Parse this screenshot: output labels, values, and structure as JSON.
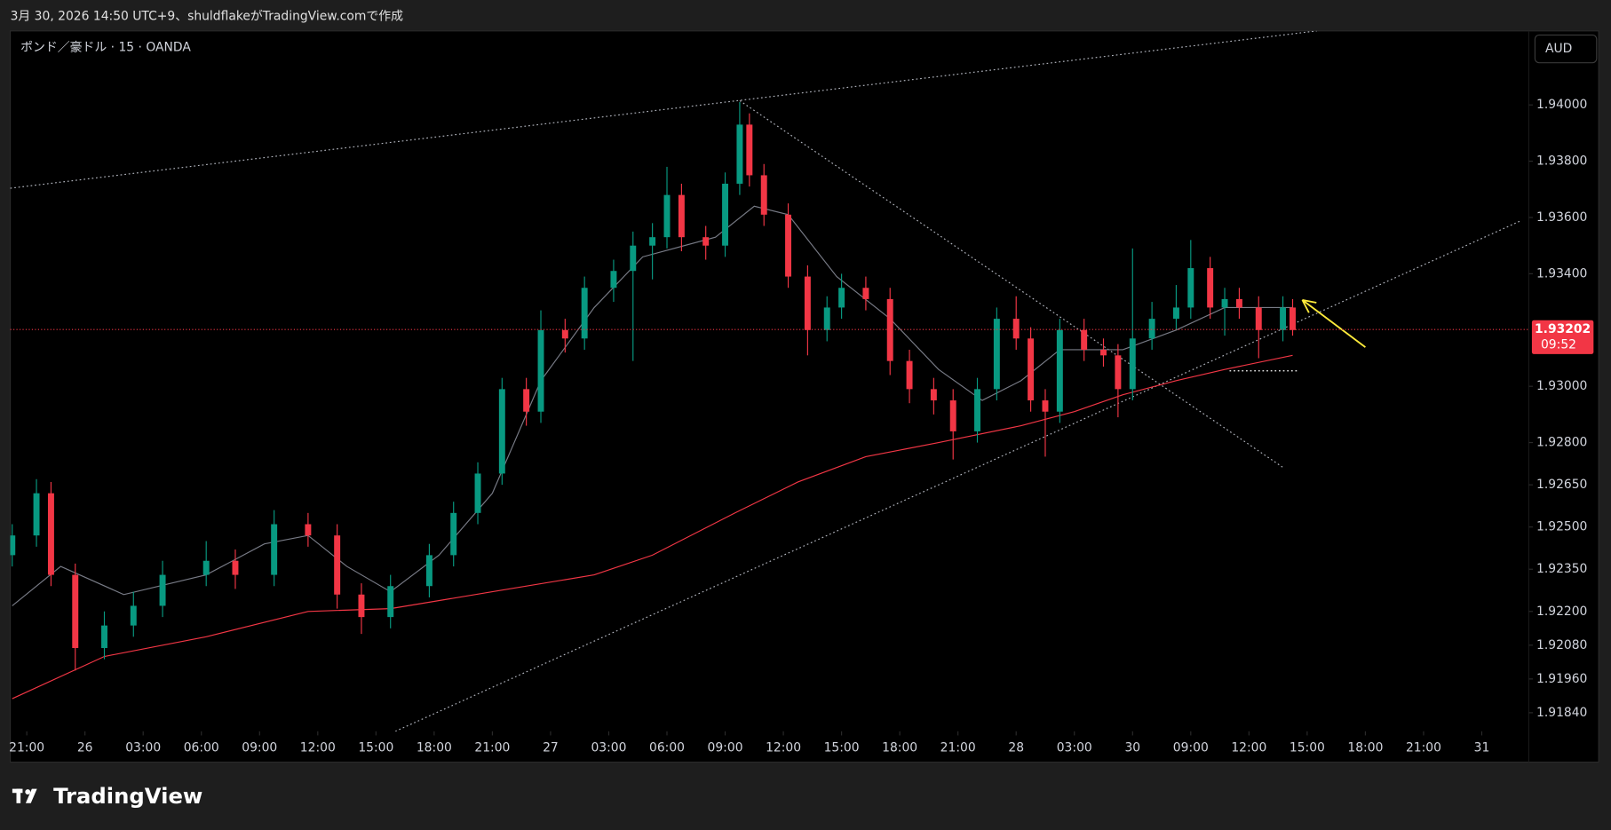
{
  "header": {
    "text": "3月 30, 2026 14:50 UTC+9、shuldflakeがTradingView.comで作成"
  },
  "footer": {
    "logo": "TradingView"
  },
  "chart_data": {
    "type": "candlestick",
    "title": "ポンド／豪ドル · 15 · OANDA",
    "currency": "AUD",
    "x": [
      -3,
      2,
      5,
      10,
      16,
      22,
      28,
      37,
      43,
      51,
      58,
      64,
      69,
      75,
      83,
      88,
      93,
      98,
      103,
      106,
      111,
      115,
      121,
      125,
      129,
      132,
      135,
      140,
      144,
      147,
      149,
      152,
      157,
      161,
      165,
      168,
      173,
      178,
      182,
      187,
      191,
      196,
      200,
      204,
      207,
      210,
      213,
      218,
      222,
      225,
      228,
      232,
      237,
      240,
      244,
      247,
      250,
      254,
      259,
      261
    ],
    "open": [
      1.924,
      1.9247,
      1.9262,
      1.9233,
      1.9207,
      1.9215,
      1.9222,
      1.9233,
      1.9238,
      1.9233,
      1.9251,
      1.9247,
      1.9226,
      1.9218,
      1.9229,
      1.924,
      1.9255,
      1.9269,
      1.9299,
      1.9291,
      1.932,
      1.9317,
      1.9335,
      1.9341,
      1.935,
      1.9353,
      1.9368,
      1.9353,
      1.935,
      1.9372,
      1.9393,
      1.9375,
      1.9361,
      1.9339,
      1.932,
      1.9328,
      1.9335,
      1.9331,
      1.9309,
      1.9299,
      1.9295,
      1.9284,
      1.9299,
      1.9324,
      1.9317,
      1.9295,
      1.9291,
      1.932,
      1.9313,
      1.9311,
      1.9299,
      1.9317,
      1.9324,
      1.9328,
      1.9342,
      1.9328,
      1.9331,
      1.9328,
      1.932,
      1.9328
    ],
    "high": [
      1.9251,
      1.9267,
      1.9266,
      1.9237,
      1.922,
      1.9227,
      1.9238,
      1.9245,
      1.9242,
      1.9256,
      1.9255,
      1.9251,
      1.923,
      1.9233,
      1.9244,
      1.9259,
      1.9273,
      1.9303,
      1.9303,
      1.9327,
      1.9324,
      1.9339,
      1.9345,
      1.9355,
      1.9358,
      1.9378,
      1.9372,
      1.9357,
      1.9376,
      1.9401,
      1.9397,
      1.9379,
      1.9365,
      1.9343,
      1.9332,
      1.934,
      1.9339,
      1.9335,
      1.9313,
      1.9303,
      1.9299,
      1.9303,
      1.9328,
      1.9332,
      1.9321,
      1.9299,
      1.9324,
      1.9324,
      1.9317,
      1.9315,
      1.9349,
      1.933,
      1.9336,
      1.9352,
      1.9346,
      1.9335,
      1.9335,
      1.9332,
      1.9332,
      1.9331
    ],
    "low": [
      1.9236,
      1.9243,
      1.9229,
      1.9199,
      1.9203,
      1.9211,
      1.9218,
      1.9229,
      1.9228,
      1.9229,
      1.9243,
      1.9221,
      1.9212,
      1.9214,
      1.9225,
      1.9236,
      1.9251,
      1.9265,
      1.9286,
      1.9287,
      1.9312,
      1.9313,
      1.933,
      1.9309,
      1.9338,
      1.9349,
      1.9348,
      1.9345,
      1.9346,
      1.9368,
      1.9371,
      1.9357,
      1.9335,
      1.9311,
      1.9316,
      1.9324,
      1.9327,
      1.9304,
      1.9294,
      1.929,
      1.9274,
      1.928,
      1.9295,
      1.9313,
      1.9291,
      1.9275,
      1.9287,
      1.9309,
      1.9307,
      1.9289,
      1.9295,
      1.9313,
      1.932,
      1.9324,
      1.9324,
      1.9318,
      1.9324,
      1.931,
      1.9316,
      1.9318
    ],
    "close": [
      1.9247,
      1.9262,
      1.9233,
      1.9207,
      1.9215,
      1.9222,
      1.9233,
      1.9238,
      1.9233,
      1.9251,
      1.9247,
      1.9226,
      1.9218,
      1.9229,
      1.924,
      1.9255,
      1.9269,
      1.9299,
      1.9291,
      1.932,
      1.9317,
      1.9335,
      1.9341,
      1.935,
      1.9353,
      1.9368,
      1.9353,
      1.935,
      1.9372,
      1.9393,
      1.9375,
      1.9361,
      1.9339,
      1.932,
      1.9328,
      1.9335,
      1.9331,
      1.9309,
      1.9299,
      1.9295,
      1.9284,
      1.9299,
      1.9324,
      1.9317,
      1.9295,
      1.9291,
      1.932,
      1.9313,
      1.9311,
      1.9299,
      1.9317,
      1.9324,
      1.9328,
      1.9342,
      1.9328,
      1.9331,
      1.9328,
      1.932,
      1.9328,
      1.932
    ],
    "up_color": "#089981",
    "down_color": "#f23645",
    "lines": [
      {
        "color": "#787b86",
        "x": [
          -3,
          7,
          20,
          37,
          49,
          58,
          66,
          75,
          85,
          96,
          106,
          117,
          127,
          142,
          150,
          157,
          167,
          178,
          188,
          197,
          205,
          213,
          226,
          237,
          247,
          261
        ],
        "values": [
          1.9222,
          1.9236,
          1.9226,
          1.9233,
          1.9244,
          1.9247,
          1.9236,
          1.9227,
          1.924,
          1.9262,
          1.9302,
          1.9328,
          1.9346,
          1.9353,
          1.9364,
          1.9361,
          1.9339,
          1.9324,
          1.9306,
          1.9295,
          1.9302,
          1.9313,
          1.9313,
          1.932,
          1.9328,
          1.9328
        ]
      },
      {
        "color": "#f23645",
        "x": [
          -3,
          16,
          37,
          58,
          75,
          96,
          117,
          129,
          146,
          159,
          173,
          188,
          205,
          216,
          226,
          237,
          247,
          261
        ],
        "values": [
          1.9189,
          1.9204,
          1.9211,
          1.922,
          1.9221,
          1.9227,
          1.9233,
          1.924,
          1.9255,
          1.9266,
          1.9275,
          1.928,
          1.9286,
          1.9291,
          1.9297,
          1.9302,
          1.9306,
          1.9311
        ]
      }
    ],
    "trendlines": [
      {
        "color": "#b2b5be",
        "x": [
          -3.4,
          266
        ],
        "values": [
          1.93704,
          1.94263
        ]
      },
      {
        "color": "#b2b5be",
        "x": [
          147,
          259
        ],
        "values": [
          1.94015,
          1.92712
        ]
      },
      {
        "color": "#b2b5be",
        "x": [
          76,
          308
        ],
        "values": [
          1.91774,
          1.93588
        ]
      },
      {
        "color": "#ffffff",
        "x": [
          248,
          262
        ],
        "values": [
          1.93055,
          1.93055
        ]
      }
    ],
    "arrow": {
      "color": "#ffeb3b",
      "x": [
        276,
        263
      ],
      "values": [
        1.93139,
        1.93307
      ]
    },
    "last_price": {
      "value": 1.93202,
      "label": "1.93202"
    },
    "countdown": "09:52",
    "xlim": [
      -3.4,
      309.7
    ],
    "ylim": [
      1.91774,
      1.94263
    ],
    "xticks": [
      {
        "value": 0,
        "label": "21:00"
      },
      {
        "value": 12,
        "label": "26"
      },
      {
        "value": 24,
        "label": "03:00"
      },
      {
        "value": 36,
        "label": "06:00"
      },
      {
        "value": 48,
        "label": "09:00"
      },
      {
        "value": 60,
        "label": "12:00"
      },
      {
        "value": 72,
        "label": "15:00"
      },
      {
        "value": 84,
        "label": "18:00"
      },
      {
        "value": 96,
        "label": "21:00"
      },
      {
        "value": 108,
        "label": "27"
      },
      {
        "value": 120,
        "label": "03:00"
      },
      {
        "value": 132,
        "label": "06:00"
      },
      {
        "value": 144,
        "label": "09:00"
      },
      {
        "value": 156,
        "label": "12:00"
      },
      {
        "value": 168,
        "label": "15:00"
      },
      {
        "value": 180,
        "label": "18:00"
      },
      {
        "value": 192,
        "label": "21:00"
      },
      {
        "value": 204,
        "label": "28"
      },
      {
        "value": 216,
        "label": "03:00"
      },
      {
        "value": 228,
        "label": "30"
      },
      {
        "value": 240,
        "label": "09:00"
      },
      {
        "value": 252,
        "label": "12:00"
      },
      {
        "value": 264,
        "label": "15:00"
      },
      {
        "value": 276,
        "label": "18:00"
      },
      {
        "value": 288,
        "label": "21:00"
      },
      {
        "value": 300,
        "label": "31"
      }
    ],
    "yticks": [
      {
        "value": 1.94,
        "label": "1.94000"
      },
      {
        "value": 1.938,
        "label": "1.93800"
      },
      {
        "value": 1.936,
        "label": "1.93600"
      },
      {
        "value": 1.934,
        "label": "1.93400"
      },
      {
        "value": 1.93,
        "label": "1.93000"
      },
      {
        "value": 1.928,
        "label": "1.92800"
      },
      {
        "value": 1.9265,
        "label": "1.92650"
      },
      {
        "value": 1.925,
        "label": "1.92500"
      },
      {
        "value": 1.9235,
        "label": "1.92350"
      },
      {
        "value": 1.922,
        "label": "1.92200"
      },
      {
        "value": 1.9208,
        "label": "1.92080"
      },
      {
        "value": 1.9196,
        "label": "1.91960"
      },
      {
        "value": 1.9184,
        "label": "1.91840"
      }
    ]
  }
}
